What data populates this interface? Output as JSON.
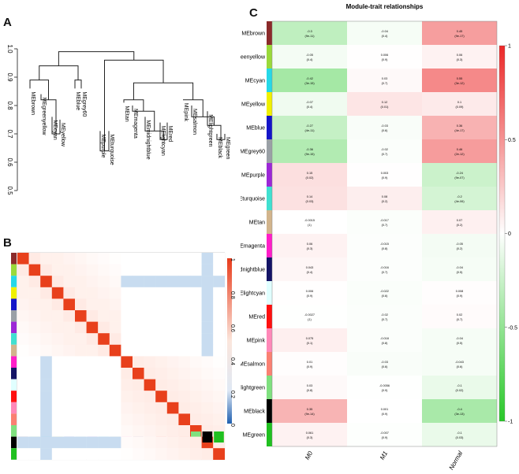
{
  "panels": {
    "a": {
      "letter": "A"
    },
    "b": {
      "letter": "B"
    },
    "c": {
      "letter": "C"
    }
  },
  "dendrogram": {
    "axis_ticks": [
      "1.0",
      "0.9",
      "0.8",
      "0.7",
      "0.6",
      "0.5"
    ],
    "leaves": [
      "MEbrown",
      "MEgreenyellow",
      "MEcyan",
      "MEyellow",
      "MEblue",
      "MEgrey60",
      "MEpurple",
      "MEturquoise",
      "MEtan",
      "MEmagenta",
      "MEmidnightblue",
      "MElightcyan",
      "MEred",
      "MEpink",
      "MEsalmon",
      "MElightgreen",
      "MEblack",
      "MEgreen"
    ]
  },
  "adjacency": {
    "colorbar_ticks": [
      "1",
      "0.8",
      "0.6",
      "0.4",
      "0.2",
      "0"
    ],
    "module_colors": [
      "#8b2a2a",
      "#9ad93a",
      "#25d8e8",
      "#f0f000",
      "#1515c8",
      "#9aa0a6",
      "#9c27d6",
      "#40e0d0",
      "#d2b48c",
      "#ff1ec8",
      "#141466",
      "#e0ffff",
      "#ff1010",
      "#ff88b8",
      "#fa8072",
      "#7fe07f",
      "#000000",
      "#20c020"
    ]
  },
  "chart_data": {
    "type": "heatmap",
    "title": "Module-trait relationships",
    "columns": [
      "M0",
      "M1",
      "Normal"
    ],
    "rows": [
      "MEbrown",
      "MEgreenyellow",
      "MEcyan",
      "MEyellow",
      "MEblue",
      "MEgrey60",
      "MEpurple",
      "MEturquoise",
      "MEtan",
      "MEmagenta",
      "MEmidnightblue",
      "MElightcyan",
      "MEred",
      "MEpink",
      "MEsalmon",
      "MElightgreen",
      "MEblack",
      "MEgreen"
    ],
    "values": [
      [
        -0.3,
        -0.04,
        0.45
      ],
      [
        -0.05,
        0.006,
        0.06
      ],
      [
        -0.42,
        0.03,
        0.55
      ],
      [
        -0.07,
        0.12,
        0.1
      ],
      [
        -0.27,
        -0.03,
        0.36
      ],
      [
        -0.36,
        -0.02,
        0.46
      ],
      [
        0.15,
        0.003,
        -0.24
      ],
      [
        0.14,
        0.08,
        -0.2
      ],
      [
        -0.0015,
        -0.017,
        0.07
      ],
      [
        0.06,
        -0.015,
        -0.05
      ],
      [
        0.043,
        -0.016,
        -0.04
      ],
      [
        0.006,
        -0.022,
        0.008
      ],
      [
        -0.0027,
        -0.02,
        0.02
      ],
      [
        0.075,
        -0.018,
        -0.04
      ],
      [
        0.01,
        -0.03,
        -0.043
      ],
      [
        0.03,
        -0.0056,
        -0.1
      ],
      [
        0.35,
        0.001,
        -0.4
      ],
      [
        0.061,
        -0.007,
        -0.1
      ]
    ],
    "cell_text": [
      [
        [
          "-0.3",
          "(9e-11)"
        ],
        [
          "-0.04",
          "(0.4)"
        ],
        [
          "0.45",
          "(9e-17)"
        ]
      ],
      [
        [
          "-0.05",
          "(0.4)"
        ],
        [
          "0.006",
          "(0.9)"
        ],
        [
          "0.06",
          "(0.3)"
        ]
      ],
      [
        [
          "-0.42",
          "(3e-15)"
        ],
        [
          "0.03",
          "(0.7)"
        ],
        [
          "0.55",
          "(3e-12)"
        ]
      ],
      [
        [
          "-0.07",
          "(0.4)"
        ],
        [
          "0.12",
          "(0.01)"
        ],
        [
          "0.1",
          "(0.09)"
        ]
      ],
      [
        [
          "-0.27",
          "(4e-11)"
        ],
        [
          "-0.03",
          "(0.6)"
        ],
        [
          "0.36",
          "(4e-17)"
        ]
      ],
      [
        [
          "-0.36",
          "(9e-15)"
        ],
        [
          "-0.02",
          "(0.7)"
        ],
        [
          "0.46",
          "(2e-12)"
        ]
      ],
      [
        [
          "0.15",
          "(0.02)"
        ],
        [
          "0.003",
          "(0.9)"
        ],
        [
          "-0.24",
          "(9e-07)"
        ]
      ],
      [
        [
          "0.14",
          "(0.03)"
        ],
        [
          "0.08",
          "(0.2)"
        ],
        [
          "-0.2",
          "(4e-06)"
        ]
      ],
      [
        [
          "-0.0015",
          "(1)"
        ],
        [
          "-0.017",
          "(0.7)"
        ],
        [
          "0.07",
          "(0.2)"
        ]
      ],
      [
        [
          "0.06",
          "(0.3)"
        ],
        [
          "-0.015",
          "(0.8)"
        ],
        [
          "-0.05",
          "(0.2)"
        ]
      ],
      [
        [
          "0.043",
          "(0.4)"
        ],
        [
          "-0.016",
          "(0.7)"
        ],
        [
          "-0.04",
          "(0.5)"
        ]
      ],
      [
        [
          "0.006",
          "(0.9)"
        ],
        [
          "-0.022",
          "(0.6)"
        ],
        [
          "0.008",
          "(0.9)"
        ]
      ],
      [
        [
          "-0.0027",
          "(1)"
        ],
        [
          "-0.02",
          "(0.7)"
        ],
        [
          "0.02",
          "(0.7)"
        ]
      ],
      [
        [
          "0.075",
          "(0.1)"
        ],
        [
          "-0.018",
          "(0.8)"
        ],
        [
          "-0.04",
          "(0.5)"
        ]
      ],
      [
        [
          "0.01",
          "(0.9)"
        ],
        [
          "-0.03",
          "(0.6)"
        ],
        [
          "-0.043",
          "(0.6)"
        ]
      ],
      [
        [
          "0.03",
          "(0.8)"
        ],
        [
          "-0.0056",
          "(0.9)"
        ],
        [
          "-0.1",
          "(0.02)"
        ]
      ],
      [
        [
          "0.35",
          "(9e-14)"
        ],
        [
          "0.001",
          "(0.9)"
        ],
        [
          "-0.4",
          "(3e-13)"
        ]
      ],
      [
        [
          "0.061",
          "(0.3)"
        ],
        [
          "-0.007",
          "(0.9)"
        ],
        [
          "-0.1",
          "(0.03)"
        ]
      ]
    ],
    "colorbar_ticks": [
      "1",
      "0.5",
      "0",
      "-0.5",
      "-1"
    ],
    "zlim": [
      -1,
      1
    ]
  }
}
